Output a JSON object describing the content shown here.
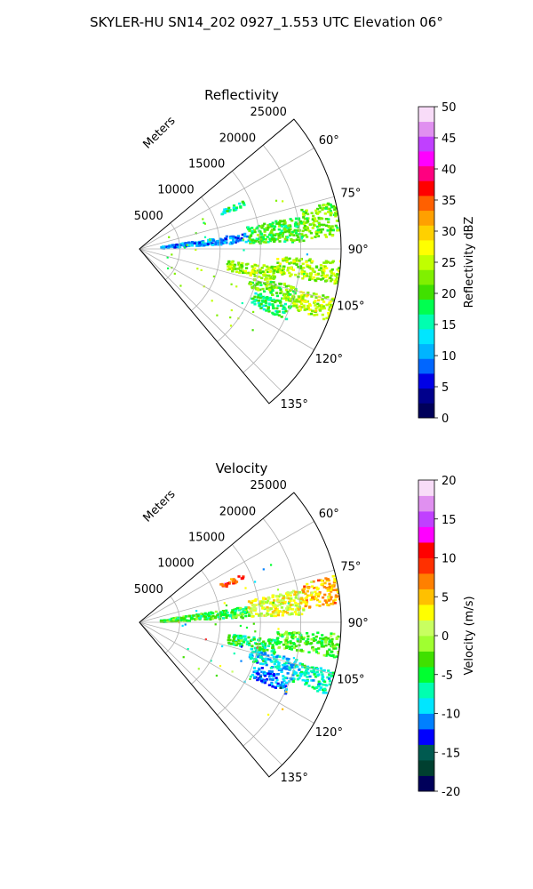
{
  "page": {
    "title": "SKYLER-HU  SN14_202  0927_1.553 UTC Elevation 06°"
  },
  "chart_data": [
    {
      "type": "heatmap",
      "projection": "polar-sector",
      "title": "Reflectivity",
      "radial_axis_label": "Meters",
      "radial_ticks": [
        "5000",
        "10000",
        "15000",
        "20000",
        "25000"
      ],
      "radial_tick_values": [
        5000,
        10000,
        15000,
        20000,
        25000
      ],
      "angular_ticks": [
        "60°",
        "75°",
        "90°",
        "105°",
        "120°",
        "135°"
      ],
      "angular_tick_values": [
        60,
        75,
        90,
        105,
        120,
        135
      ],
      "azimuth_range": [
        50,
        140
      ],
      "range_max": 25000,
      "grid": true,
      "colorbar": {
        "label": "Reflectivity dBZ",
        "range": [
          0,
          50
        ],
        "tick_labels": [
          "0",
          "5",
          "10",
          "15",
          "20",
          "25",
          "30",
          "35",
          "40",
          "45",
          "50"
        ],
        "tick_values": [
          0,
          5,
          10,
          15,
          20,
          25,
          30,
          35,
          40,
          45,
          50
        ],
        "colors": [
          "#00005a",
          "#00008c",
          "#0000e6",
          "#0066ff",
          "#00b4ff",
          "#00e6ff",
          "#00ffb0",
          "#00ff50",
          "#40e000",
          "#80f000",
          "#c0ff00",
          "#ffff00",
          "#ffd000",
          "#ffa000",
          "#ff6000",
          "#ff0000",
          "#ff0080",
          "#ff00ff",
          "#c040ff",
          "#e090f0",
          "#f8dcf8"
        ]
      },
      "echoes": [
        {
          "az": [
            81,
            86
          ],
          "r": [
            2500,
            13500
          ],
          "value": 10
        },
        {
          "az": [
            78,
            87
          ],
          "r": [
            13500,
            20500
          ],
          "value": 20
        },
        {
          "az": [
            76,
            86
          ],
          "r": [
            20500,
            25000
          ],
          "value": 22
        },
        {
          "az": [
            93,
            100
          ],
          "r": [
            17000,
            25000
          ],
          "value": 24
        },
        {
          "az": [
            97,
            103
          ],
          "r": [
            11000,
            17000
          ],
          "value": 23
        },
        {
          "az": [
            103,
            109
          ],
          "r": [
            14000,
            20000
          ],
          "value": 22
        },
        {
          "az": [
            104,
            111
          ],
          "r": [
            20000,
            25000
          ],
          "value": 25
        },
        {
          "az": [
            110,
            116
          ],
          "r": [
            15000,
            20000
          ],
          "value": 17
        },
        {
          "az": [
            64,
            67
          ],
          "r": [
            11000,
            14000
          ],
          "value": 16
        }
      ]
    },
    {
      "type": "heatmap",
      "projection": "polar-sector",
      "title": "Velocity",
      "radial_axis_label": "Meters",
      "radial_ticks": [
        "5000",
        "10000",
        "15000",
        "20000",
        "25000"
      ],
      "radial_tick_values": [
        5000,
        10000,
        15000,
        20000,
        25000
      ],
      "angular_ticks": [
        "60°",
        "75°",
        "90°",
        "105°",
        "120°",
        "135°"
      ],
      "angular_tick_values": [
        60,
        75,
        90,
        105,
        120,
        135
      ],
      "azimuth_range": [
        50,
        140
      ],
      "range_max": 25000,
      "grid": true,
      "colorbar": {
        "label": "Velocity (m/s)",
        "range": [
          -20,
          20
        ],
        "tick_labels": [
          "-20",
          "-15",
          "-10",
          "-5",
          "0",
          "5",
          "10",
          "15",
          "20"
        ],
        "tick_values": [
          -20,
          -15,
          -10,
          -5,
          0,
          5,
          10,
          15,
          20
        ],
        "colors": [
          "#00005a",
          "#004030",
          "#005a50",
          "#0000ff",
          "#0080ff",
          "#00e6ff",
          "#00ffb0",
          "#00ff30",
          "#40e000",
          "#a0ff30",
          "#c8ff60",
          "#ffff00",
          "#ffc000",
          "#ff8000",
          "#ff3000",
          "#ff0000",
          "#ff00ff",
          "#c040ff",
          "#e090f0",
          "#f8dcf8"
        ]
      },
      "echoes": [
        {
          "az": [
            81,
            87
          ],
          "r": [
            2500,
            13500
          ],
          "value": -4
        },
        {
          "az": [
            78,
            87
          ],
          "r": [
            13500,
            20500
          ],
          "value": 2
        },
        {
          "az": [
            76,
            85
          ],
          "r": [
            20500,
            25000
          ],
          "value": 5
        },
        {
          "az": [
            93,
            100
          ],
          "r": [
            17000,
            25000
          ],
          "value": -3
        },
        {
          "az": [
            97,
            103
          ],
          "r": [
            11000,
            17000
          ],
          "value": -5
        },
        {
          "az": [
            103,
            109
          ],
          "r": [
            14000,
            20000
          ],
          "value": -9
        },
        {
          "az": [
            104,
            111
          ],
          "r": [
            20000,
            25000
          ],
          "value": -7
        },
        {
          "az": [
            110,
            116
          ],
          "r": [
            15000,
            20000
          ],
          "value": -11
        },
        {
          "az": [
            64,
            67
          ],
          "r": [
            11000,
            14000
          ],
          "value": 9
        }
      ]
    }
  ]
}
